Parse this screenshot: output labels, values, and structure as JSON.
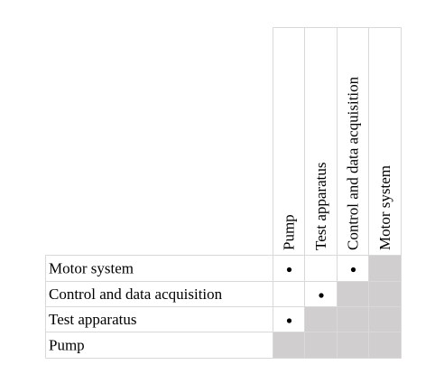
{
  "matrix": {
    "columns": [
      "Pump",
      "Test apparatus",
      "Control and data acquisition",
      "Motor system"
    ],
    "rows": [
      "Motor system",
      "Control and data acquisition",
      "Test apparatus",
      "Pump"
    ],
    "marks": [
      {
        "row": "Motor system",
        "column": "Pump",
        "symbol": "•"
      },
      {
        "row": "Motor system",
        "column": "Control and data acquisition",
        "symbol": "•"
      },
      {
        "row": "Control and data acquisition",
        "column": "Test apparatus",
        "symbol": "•"
      },
      {
        "row": "Test apparatus",
        "column": "Pump",
        "symbol": "•"
      }
    ],
    "shaded_cells": [
      {
        "row": "Motor system",
        "column": "Motor system"
      },
      {
        "row": "Control and data acquisition",
        "column": "Control and data acquisition"
      },
      {
        "row": "Control and data acquisition",
        "column": "Motor system"
      },
      {
        "row": "Test apparatus",
        "column": "Test apparatus"
      },
      {
        "row": "Test apparatus",
        "column": "Control and data acquisition"
      },
      {
        "row": "Test apparatus",
        "column": "Motor system"
      },
      {
        "row": "Pump",
        "column": "Pump"
      },
      {
        "row": "Pump",
        "column": "Test apparatus"
      },
      {
        "row": "Pump",
        "column": "Control and data acquisition"
      },
      {
        "row": "Pump",
        "column": "Motor system"
      }
    ],
    "colors": {
      "shade": "#d0cece",
      "grid": "#d9d9d9",
      "text": "#000000"
    }
  }
}
